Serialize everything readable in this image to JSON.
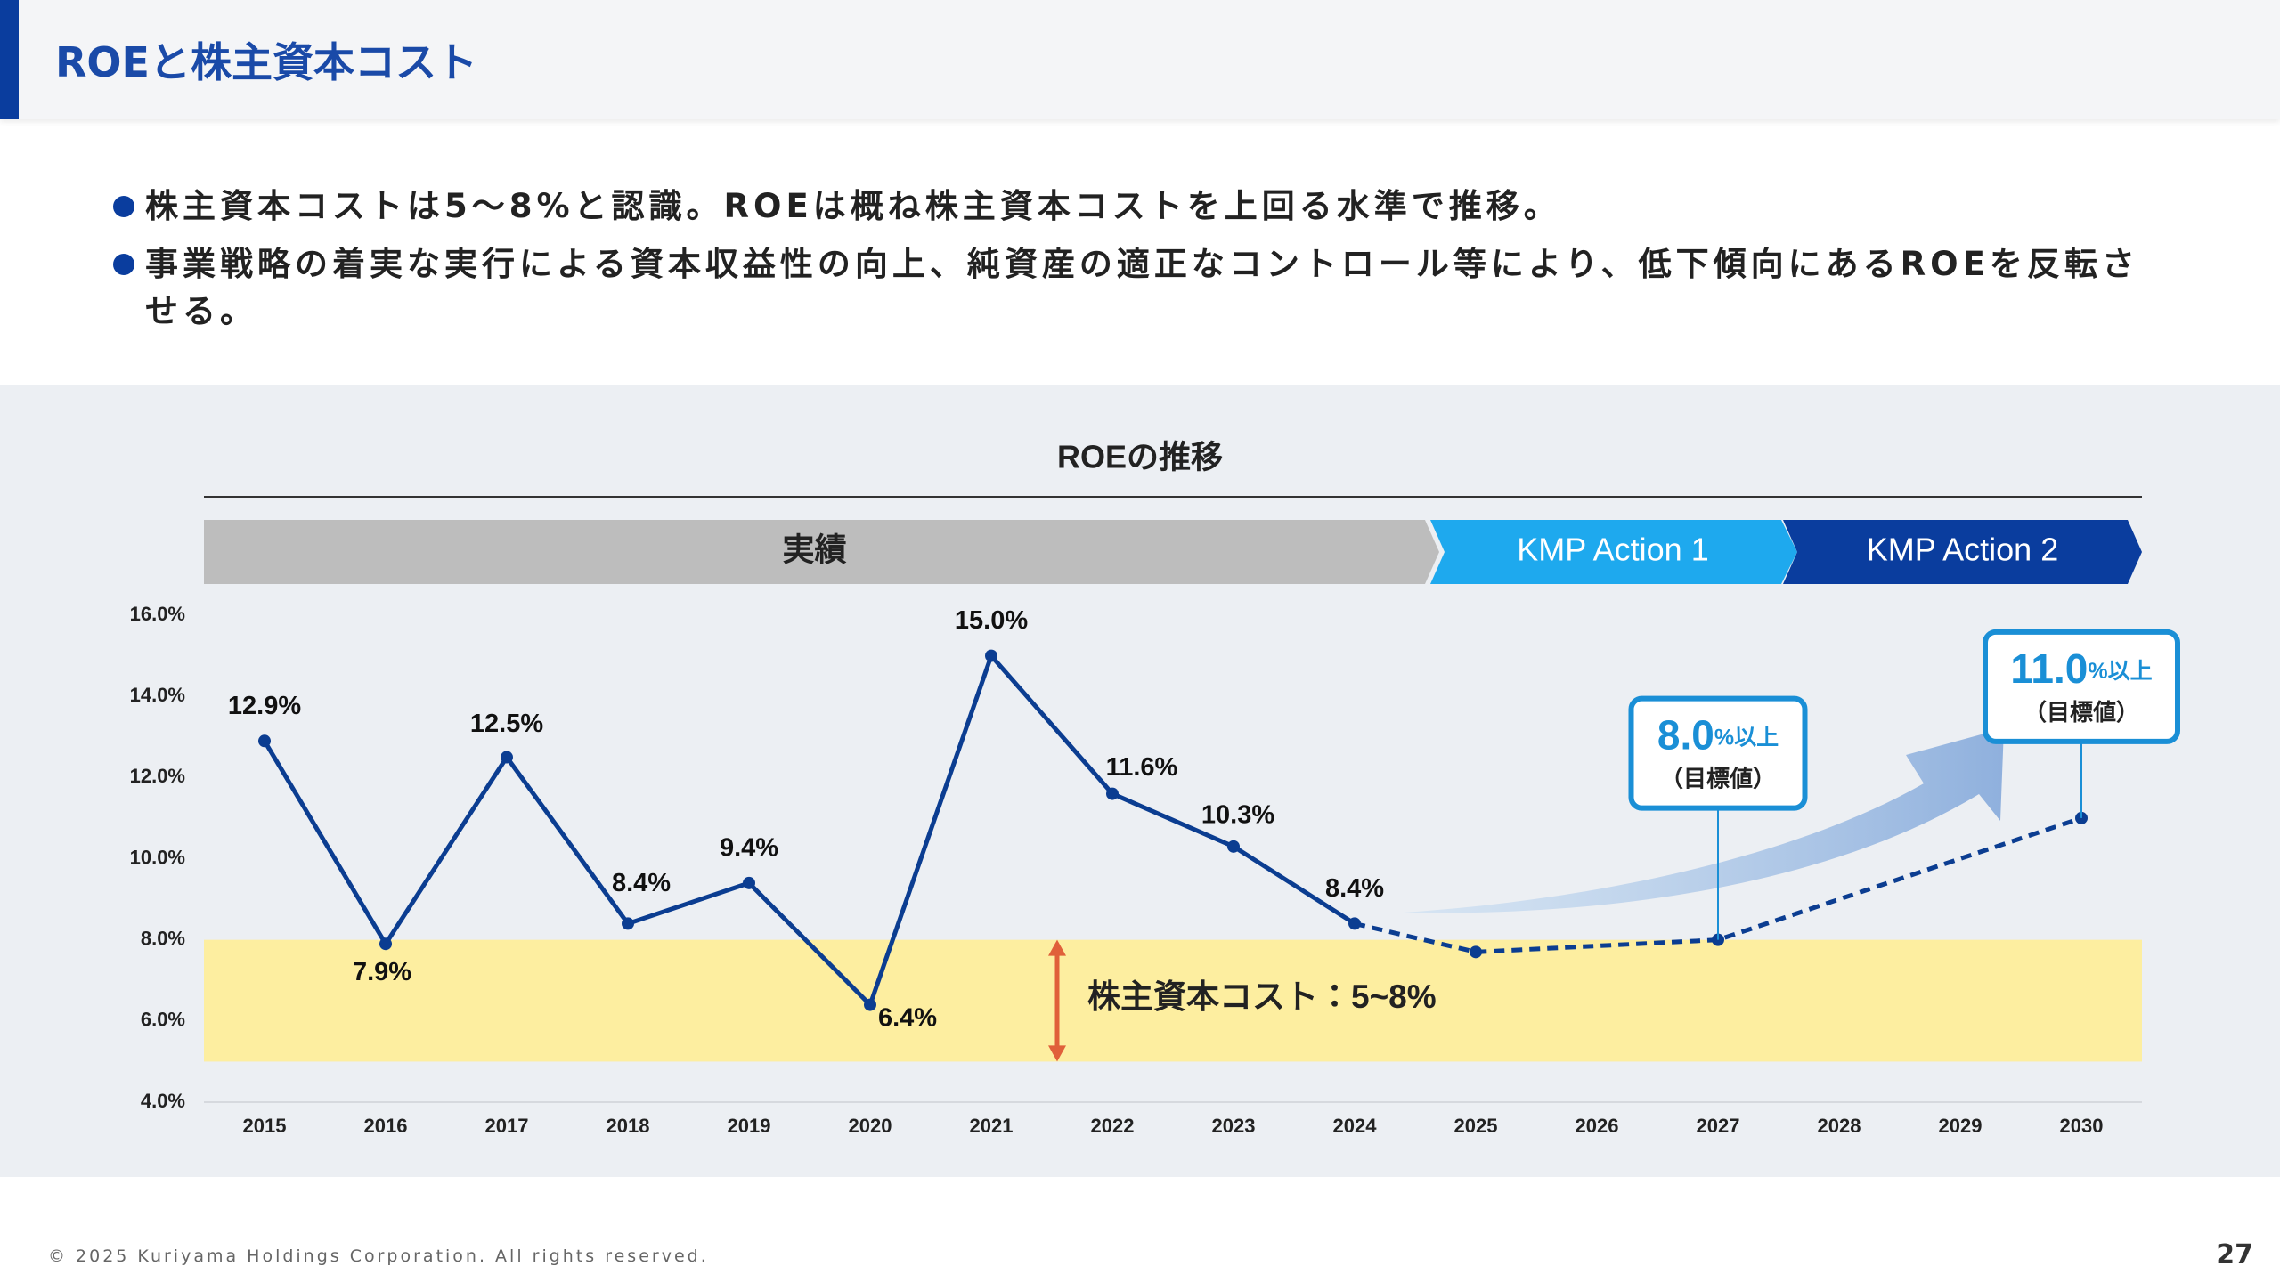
{
  "header": {
    "title": "ROEと株主資本コスト"
  },
  "bullets": [
    "株主資本コストは5〜8%と認識。ROEは概ね株主資本コストを上回る水準で推移。",
    "事業戦略の着実な実行による資本収益性の向上、純資産の適正なコントロール等により、低下傾向にあるROEを反転させる。"
  ],
  "chart_data": {
    "type": "line",
    "title": "ROEの推移",
    "phases": [
      {
        "label": "実績",
        "color": "#bdbdbd",
        "text_color": "#222222"
      },
      {
        "label": "KMP Action 1",
        "color": "#1ea9ee",
        "text_color": "#ffffff"
      },
      {
        "label": "KMP Action 2",
        "color": "#0a3d9e",
        "text_color": "#ffffff"
      }
    ],
    "x": [
      2015,
      2016,
      2017,
      2018,
      2019,
      2020,
      2021,
      2022,
      2023,
      2024,
      2025,
      2026,
      2027,
      2028,
      2029,
      2030
    ],
    "xlim": [
      2014.5,
      2030.5
    ],
    "xticks": [
      2015,
      2016,
      2017,
      2018,
      2019,
      2020,
      2021,
      2022,
      2023,
      2024,
      2025,
      2026,
      2027,
      2028,
      2029,
      2030
    ],
    "ylim": [
      4,
      16
    ],
    "yticks": [
      {
        "value": 4,
        "label": "4.0%"
      },
      {
        "value": 6,
        "label": "6.0%"
      },
      {
        "value": 8,
        "label": "8.0%"
      },
      {
        "value": 10,
        "label": "10.0%"
      },
      {
        "value": 12,
        "label": "12.0%"
      },
      {
        "value": 14,
        "label": "14.0%"
      },
      {
        "value": 16,
        "label": "16.0%"
      }
    ],
    "series": [
      {
        "color": "#0b3d91",
        "style": "solid",
        "values": [
          12.9,
          7.9,
          12.5,
          8.4,
          9.4,
          6.4,
          15.0,
          11.6,
          10.3,
          8.4,
          null,
          null,
          null,
          null,
          null,
          null
        ],
        "value_labels": [
          "12.9%",
          "7.9%",
          "12.5%",
          "8.4%",
          "9.4%",
          "6.4%",
          "15.0%",
          "11.6%",
          "10.3%",
          "8.4%",
          null,
          null,
          null,
          null,
          null,
          null
        ]
      },
      {
        "color": "#0b3d91",
        "style": "dashed",
        "x": [
          2024,
          2025,
          2027,
          2030
        ],
        "values": [
          8.4,
          7.7,
          8.0,
          11.0
        ],
        "value_labels": [
          null,
          null,
          "8.0",
          "11.0"
        ]
      }
    ],
    "target_suffix": "%以上",
    "target_note": "（目標値）",
    "target_color": "#1a8fd6",
    "cost_band": {
      "label": "株主資本コスト：5~8%",
      "range": [
        5,
        8
      ],
      "color": "#fdeea0",
      "arrow_color": "#e0603a"
    }
  },
  "footer": {
    "copyright": "© 2025 Kuriyama Holdings Corporation. All rights reserved.",
    "page": "27"
  }
}
